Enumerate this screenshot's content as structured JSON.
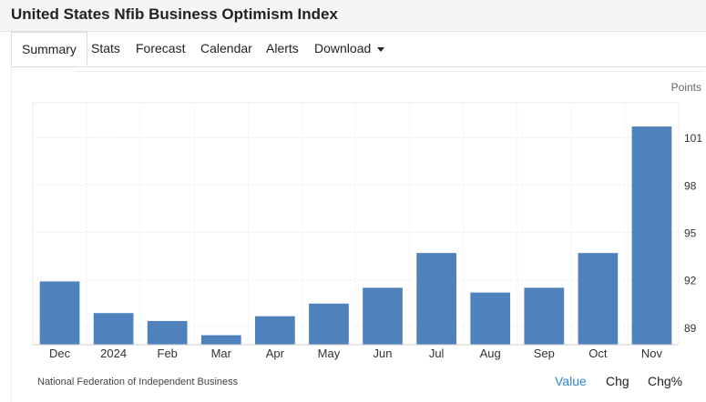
{
  "header": {
    "title": "United States Nfib Business Optimism Index"
  },
  "tabs": [
    {
      "label": "Summary"
    },
    {
      "label": "Stats"
    },
    {
      "label": "Forecast"
    },
    {
      "label": "Calendar"
    },
    {
      "label": "Alerts"
    },
    {
      "label": "Download"
    }
  ],
  "colors": {
    "bar": "#4f81bd",
    "active_toggle": "#2f89d8"
  },
  "chart_data": {
    "type": "bar",
    "units_label": "Points",
    "categories": [
      "Dec",
      "2024",
      "Feb",
      "Mar",
      "Apr",
      "May",
      "Jun",
      "Jul",
      "Aug",
      "Sep",
      "Oct",
      "Nov"
    ],
    "values": [
      91.9,
      89.9,
      89.4,
      88.5,
      89.7,
      90.5,
      91.5,
      93.7,
      91.2,
      91.5,
      93.7,
      101.7
    ],
    "ylim": [
      87.9,
      103.2
    ],
    "yticks": [
      89,
      92,
      95,
      98,
      101
    ],
    "y_axis_position": "right",
    "grid": true
  },
  "footer": {
    "source": "National Federation of Independent Business",
    "toggles": [
      "Value",
      "Chg",
      "Chg%"
    ],
    "active_toggle": "Value"
  }
}
